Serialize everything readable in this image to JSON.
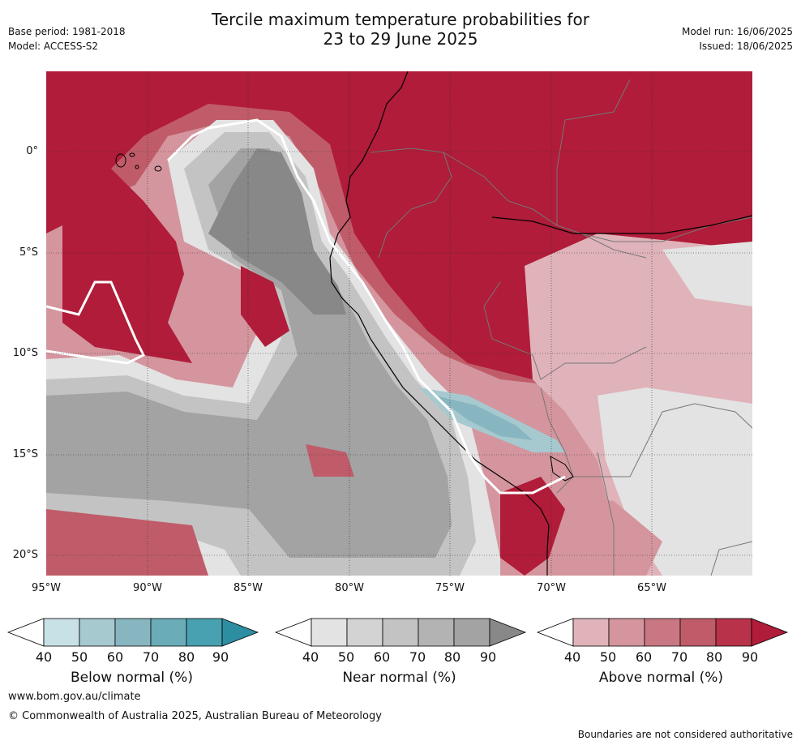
{
  "title_line1": "Tercile maximum temperature probabilities for",
  "title_line2": "23 to 29 June 2025",
  "base_period": "Base period: 1981-2018",
  "model": "Model: ACCESS-S2",
  "model_run": "Model run: 16/06/2025",
  "issued": "Issued: 18/06/2025",
  "lat_ticks": [
    "0°",
    "5°S",
    "10°S",
    "15°S",
    "20°S"
  ],
  "lon_ticks": [
    "95°W",
    "90°W",
    "85°W",
    "80°W",
    "75°W",
    "70°W",
    "65°W"
  ],
  "colorbars": [
    {
      "title": "Below normal (%)",
      "ticks": [
        "40",
        "50",
        "60",
        "70",
        "80",
        "90"
      ],
      "colors": [
        "#ffffff",
        "#c8e1e6",
        "#a6c9cf",
        "#88b6c0",
        "#6aacb8",
        "#48a1b0",
        "#2c8ea0"
      ]
    },
    {
      "title": "Near normal (%)",
      "ticks": [
        "40",
        "50",
        "60",
        "70",
        "80",
        "90"
      ],
      "colors": [
        "#ffffff",
        "#e3e3e3",
        "#d3d3d3",
        "#c3c3c3",
        "#b3b3b3",
        "#a3a3a3",
        "#888888"
      ]
    },
    {
      "title": "Above normal (%)",
      "ticks": [
        "40",
        "50",
        "60",
        "70",
        "80",
        "90"
      ],
      "colors": [
        "#ffffff",
        "#dfb3b9",
        "#d4959e",
        "#c97883",
        "#c05c69",
        "#b8324a",
        "#b01c39"
      ]
    }
  ],
  "footer_url": "www.bom.gov.au/climate",
  "footer_copyright": "© Commonwealth of Australia 2025, Australian Bureau of Meteorology",
  "disclaimer": "Boundaries are not considered authoritative"
}
